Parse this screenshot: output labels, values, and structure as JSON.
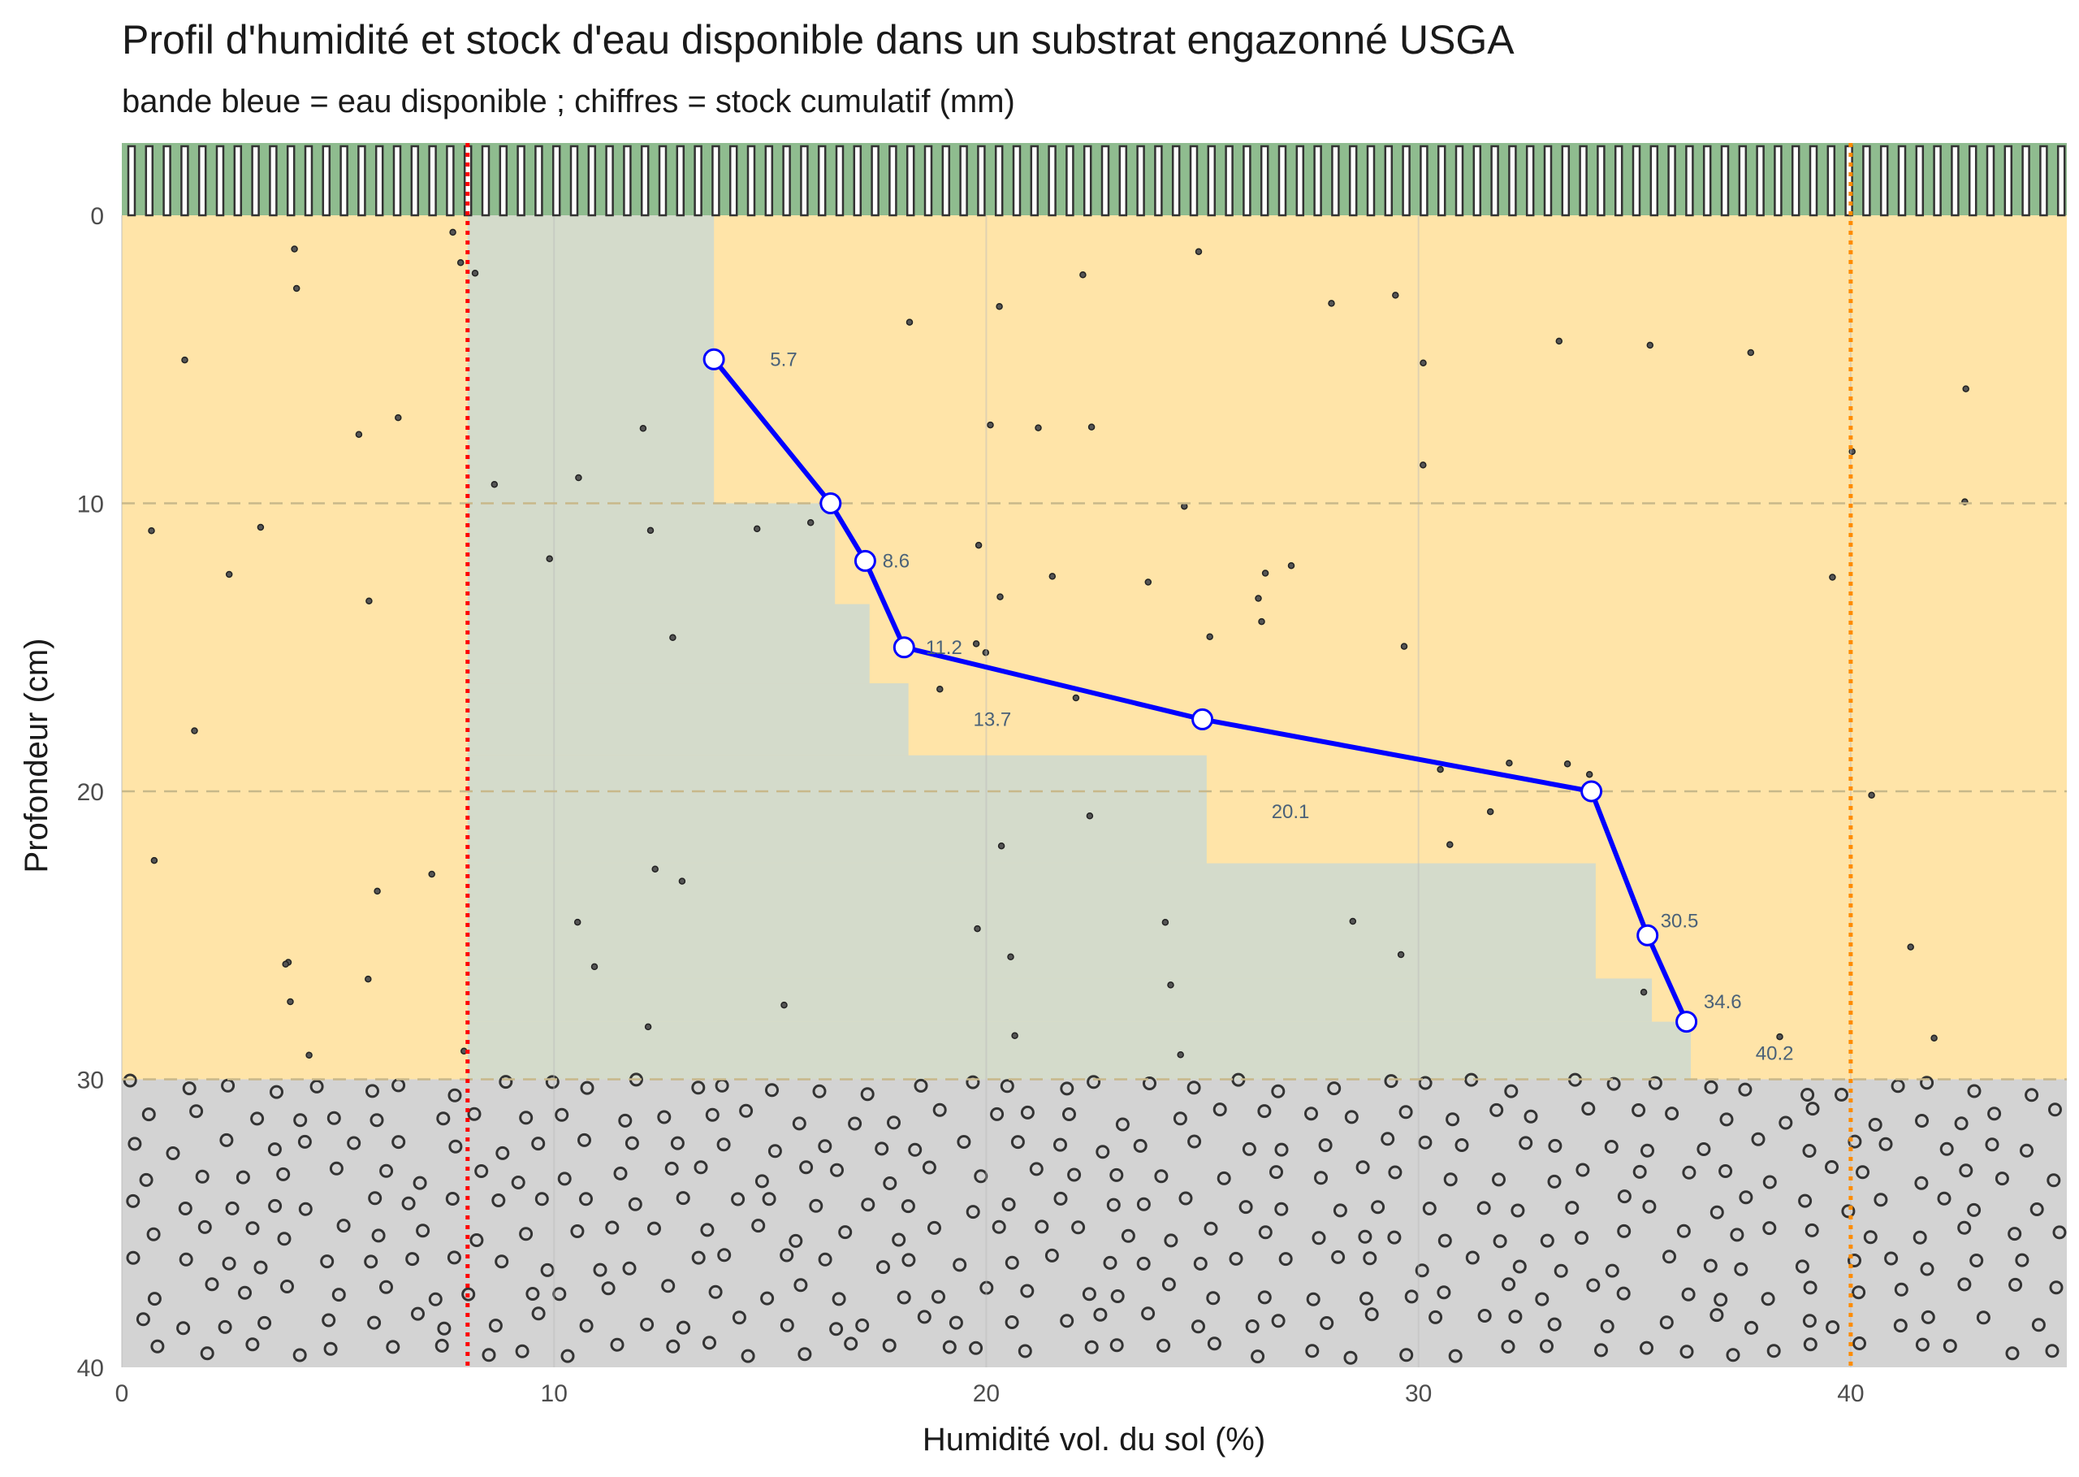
{
  "chart_data": {
    "type": "line",
    "title": "Profil d'humidité et stock d'eau disponible dans un substrat engazonné USGA",
    "subtitle": "bande bleue = eau disponible ; chiffres = stock cumulatif (mm)",
    "xlabel": "Humidité vol. du sol (%)",
    "ylabel": "Profondeur (cm)",
    "xlim": [
      0,
      45
    ],
    "ylim": [
      0,
      40
    ],
    "y_reversed": true,
    "x_ticks": [
      0,
      10,
      20,
      30,
      40
    ],
    "y_ticks": [
      0,
      10,
      20,
      30,
      40
    ],
    "grid": true,
    "zones": {
      "turf_top": {
        "color": "#8fbc8f"
      },
      "rootzone": {
        "from": 0,
        "to": 30,
        "color": "#ffe4a8"
      },
      "gravel": {
        "from": 30,
        "to": 40,
        "color": "#d3d3d3"
      }
    },
    "reference_lines": [
      {
        "x": 8,
        "color": "#ff0000",
        "style": "dotted"
      },
      {
        "x": 40,
        "color": "#ff8c00",
        "style": "dotted"
      }
    ],
    "available_water_band": {
      "color": "#b0d4e8",
      "wilting_point": 8,
      "steps": [
        {
          "from": 0,
          "to": 10,
          "x": 13.7
        },
        {
          "from": 10,
          "to": 13.5,
          "x": 16.5
        },
        {
          "from": 13.5,
          "to": 16.25,
          "x": 17.3
        },
        {
          "from": 16.25,
          "to": 18.75,
          "x": 18.2
        },
        {
          "from": 18.75,
          "to": 22.5,
          "x": 25.1
        },
        {
          "from": 22.5,
          "to": 26.5,
          "x": 34.1
        },
        {
          "from": 26.5,
          "to": 28,
          "x": 35.4
        },
        {
          "from": 28,
          "to": 30,
          "x": 36.3
        }
      ]
    },
    "series": [
      {
        "color": "#0000ff",
        "points": [
          {
            "x": 13.7,
            "y": 5
          },
          {
            "x": 16.4,
            "y": 10
          },
          {
            "x": 17.2,
            "y": 12
          },
          {
            "x": 18.1,
            "y": 15
          },
          {
            "x": 25.0,
            "y": 17.5
          },
          {
            "x": 34.0,
            "y": 20
          },
          {
            "x": 35.3,
            "y": 25
          },
          {
            "x": 36.2,
            "y": 28
          }
        ]
      }
    ],
    "cumulative_labels": [
      {
        "text": "5.7",
        "x": 15.0,
        "y": 5
      },
      {
        "text": "8.6",
        "x": 17.6,
        "y": 12
      },
      {
        "text": "11.2",
        "x": 18.6,
        "y": 15
      },
      {
        "text": "13.7",
        "x": 19.7,
        "y": 17.5
      },
      {
        "text": "20.1",
        "x": 26.6,
        "y": 20.7
      },
      {
        "text": "30.5",
        "x": 35.6,
        "y": 24.5
      },
      {
        "text": "34.6",
        "x": 36.6,
        "y": 27.3
      },
      {
        "text": "40.2",
        "x": 37.8,
        "y": 29.1
      }
    ]
  }
}
